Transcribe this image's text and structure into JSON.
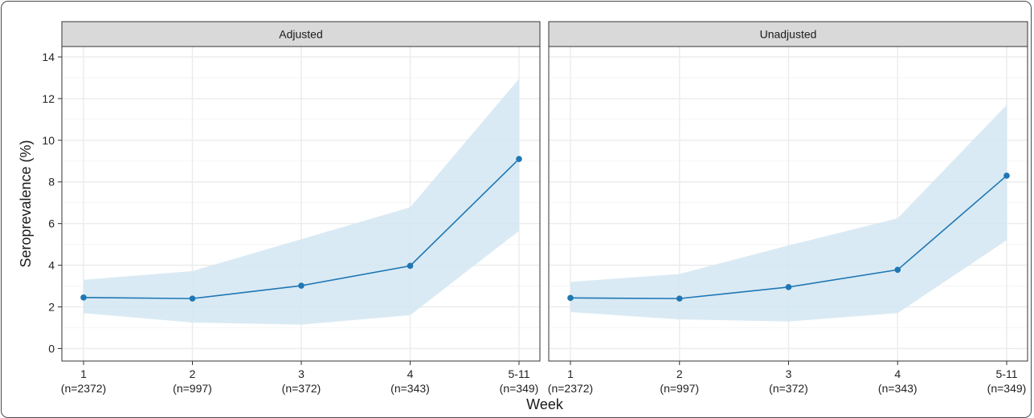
{
  "chart_data": {
    "type": "line",
    "xlabel": "Week",
    "ylabel": "Seroprevalence (%)",
    "ylim": [
      -0.6,
      14.5
    ],
    "yticks": [
      0,
      2,
      4,
      6,
      8,
      10,
      12,
      14
    ],
    "categories": [
      {
        "week": "1",
        "n": "(n=2372)"
      },
      {
        "week": "2",
        "n": "(n=997)"
      },
      {
        "week": "3",
        "n": "(n=372)"
      },
      {
        "week": "4",
        "n": "(n=343)"
      },
      {
        "week": "5-11",
        "n": "(n=349)"
      }
    ],
    "grid": true,
    "colors": {
      "line": "#1f77b4",
      "band": "#d2e6f2",
      "strip_fill": "#d9d9d9",
      "grid": "#ebebeb"
    },
    "panels": [
      {
        "label": "Adjusted",
        "values": [
          2.45,
          2.4,
          3.02,
          3.97,
          9.1
        ],
        "lower": [
          1.7,
          1.25,
          1.15,
          1.6,
          5.65
        ],
        "upper": [
          3.3,
          3.72,
          5.25,
          6.78,
          12.95
        ]
      },
      {
        "label": "Unadjusted",
        "values": [
          2.43,
          2.4,
          2.95,
          3.78,
          8.3
        ],
        "lower": [
          1.75,
          1.4,
          1.3,
          1.7,
          5.2
        ],
        "upper": [
          3.2,
          3.58,
          4.95,
          6.25,
          11.7
        ]
      }
    ]
  }
}
